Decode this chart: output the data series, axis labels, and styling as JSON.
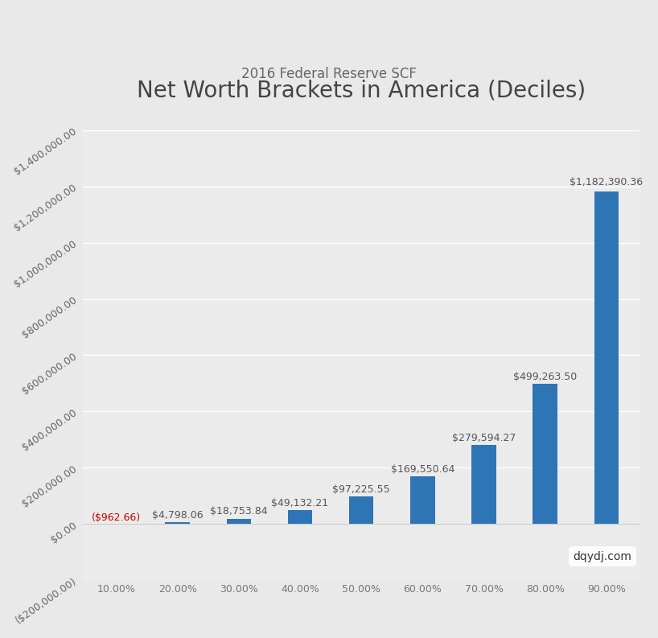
{
  "title": "Net Worth Brackets in America (Deciles)",
  "subtitle": "2016 Federal Reserve SCF",
  "categories": [
    "10.00%",
    "20.00%",
    "30.00%",
    "40.00%",
    "50.00%",
    "60.00%",
    "70.00%",
    "80.00%",
    "90.00%"
  ],
  "values": [
    -962.66,
    4798.06,
    18753.84,
    49132.21,
    97225.55,
    169550.64,
    279594.27,
    499263.5,
    1182390.36
  ],
  "labels": [
    "($962.66)",
    "$4,798.06",
    "$18,753.84",
    "$49,132.21",
    "$97,225.55",
    "$169,550.64",
    "$279,594.27",
    "$499,263.50",
    "$1,182,390.36"
  ],
  "bar_color": "#2E75B6",
  "negative_label_color": "#C00000",
  "background_color": "#E9E9E9",
  "plot_bg_color": "#EBEBEB",
  "ylim": [
    -200000,
    1400000
  ],
  "yticks": [
    -200000,
    0,
    200000,
    400000,
    600000,
    800000,
    1000000,
    1200000,
    1400000
  ],
  "watermark": "dqydj.com",
  "title_fontsize": 20,
  "subtitle_fontsize": 12,
  "tick_fontsize": 9,
  "label_fontsize": 9,
  "watermark_fontsize": 10,
  "label_color": "#555555"
}
